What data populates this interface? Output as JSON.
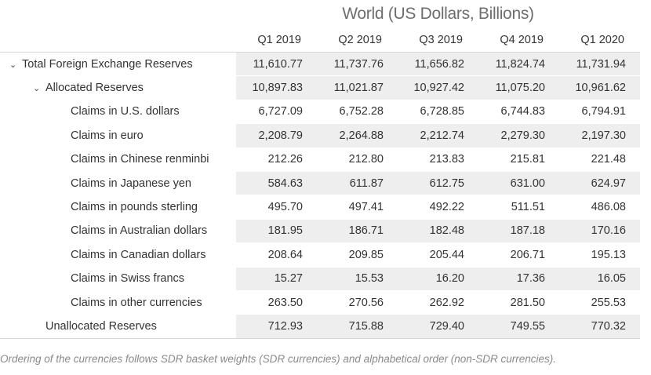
{
  "table": {
    "title": "World (US Dollars, Billions)",
    "columns": [
      "Q1 2019",
      "Q2 2019",
      "Q3 2019",
      "Q4 2019",
      "Q1 2020"
    ],
    "rows": [
      {
        "label": "Total Foreign Exchange Reserves",
        "values": [
          "11,610.77",
          "11,737.76",
          "11,656.82",
          "11,824.74",
          "11,731.94"
        ],
        "expandable": true,
        "chevron": "⌄"
      },
      {
        "label": "Allocated Reserves",
        "values": [
          "10,897.83",
          "11,021.87",
          "10,927.42",
          "11,075.20",
          "10,961.62"
        ],
        "expandable": true,
        "chevron": "⌄"
      },
      {
        "label": "Claims in U.S. dollars",
        "values": [
          "6,727.09",
          "6,752.28",
          "6,728.85",
          "6,744.83",
          "6,794.91"
        ]
      },
      {
        "label": "Claims in euro",
        "values": [
          "2,208.79",
          "2,264.88",
          "2,212.74",
          "2,279.30",
          "2,197.30"
        ]
      },
      {
        "label": "Claims in Chinese renminbi",
        "values": [
          "212.26",
          "212.80",
          "213.83",
          "215.81",
          "221.48"
        ]
      },
      {
        "label": "Claims in Japanese yen",
        "values": [
          "584.63",
          "611.87",
          "612.75",
          "631.00",
          "624.97"
        ]
      },
      {
        "label": "Claims in pounds sterling",
        "values": [
          "495.70",
          "497.41",
          "492.22",
          "511.51",
          "486.08"
        ]
      },
      {
        "label": "Claims in Australian dollars",
        "values": [
          "181.95",
          "186.71",
          "182.48",
          "187.18",
          "170.16"
        ]
      },
      {
        "label": "Claims in Canadian dollars",
        "values": [
          "208.64",
          "209.85",
          "205.44",
          "206.71",
          "195.13"
        ]
      },
      {
        "label": "Claims in Swiss francs",
        "values": [
          "15.27",
          "15.53",
          "16.20",
          "17.36",
          "16.05"
        ]
      },
      {
        "label": "Claims in other currencies",
        "values": [
          "263.50",
          "270.56",
          "262.92",
          "281.50",
          "255.53"
        ]
      },
      {
        "label": "Unallocated Reserves",
        "values": [
          "712.93",
          "715.88",
          "729.40",
          "749.55",
          "770.32"
        ]
      }
    ]
  },
  "footnote": "Ordering of the currencies follows SDR basket weights (SDR currencies) and alphabetical order (non-SDR currencies)."
}
